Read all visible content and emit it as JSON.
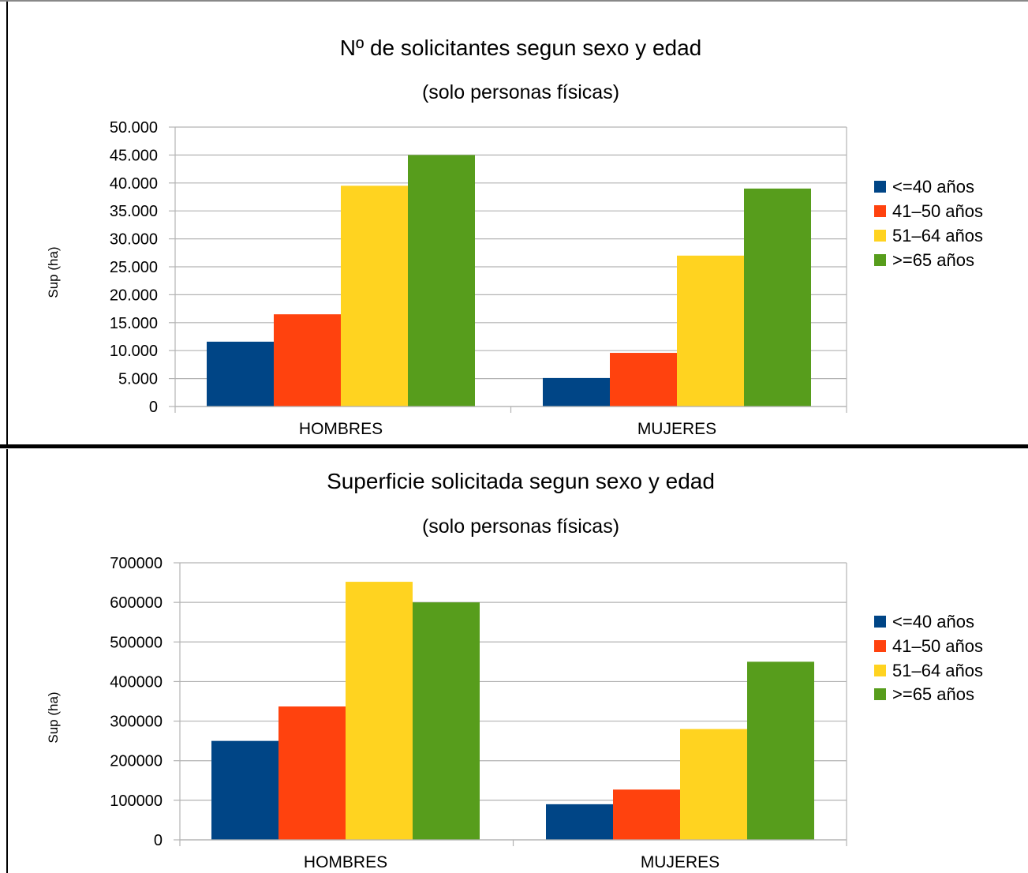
{
  "chart_data": [
    {
      "type": "bar",
      "title": "Nº de solicitantes segun sexo y edad",
      "subtitle": "(solo personas físicas)",
      "xlabel": "",
      "ylabel": "Sup (ha)",
      "categories": [
        "HOMBRES",
        "MUJERES"
      ],
      "ylim": [
        0,
        50000
      ],
      "yticks": [
        "0",
        "5.000",
        "10.000",
        "15.000",
        "20.000",
        "25.000",
        "30.000",
        "35.000",
        "40.000",
        "45.000",
        "50.000"
      ],
      "grid": true,
      "legend_position": "right",
      "series": [
        {
          "name": "<=40  años",
          "color": "#004586",
          "values": [
            11600,
            5100
          ]
        },
        {
          "name": "41–50 años",
          "color": "#ff420e",
          "values": [
            16500,
            9600
          ]
        },
        {
          "name": "51–64 años",
          "color": "#ffd320",
          "values": [
            39500,
            27000
          ]
        },
        {
          "name": ">=65 años",
          "color": "#579d1c",
          "values": [
            45000,
            39000
          ]
        }
      ]
    },
    {
      "type": "bar",
      "title": "Superficie solicitada  segun sexo y edad",
      "subtitle": "(solo personas físicas)",
      "xlabel": "",
      "ylabel": "Sup (ha)",
      "categories": [
        "HOMBRES",
        "MUJERES"
      ],
      "ylim": [
        0,
        700000
      ],
      "yticks": [
        "0",
        "100000",
        "200000",
        "300000",
        "400000",
        "500000",
        "600000",
        "700000"
      ],
      "grid": true,
      "legend_position": "right",
      "series": [
        {
          "name": "<=40  años",
          "color": "#004586",
          "values": [
            250000,
            90000
          ]
        },
        {
          "name": "41–50 años",
          "color": "#ff420e",
          "values": [
            337000,
            127000
          ]
        },
        {
          "name": "51–64 años",
          "color": "#ffd320",
          "values": [
            652000,
            280000
          ]
        },
        {
          "name": ">=65 años",
          "color": "#579d1c",
          "values": [
            600000,
            450000
          ]
        }
      ]
    }
  ]
}
